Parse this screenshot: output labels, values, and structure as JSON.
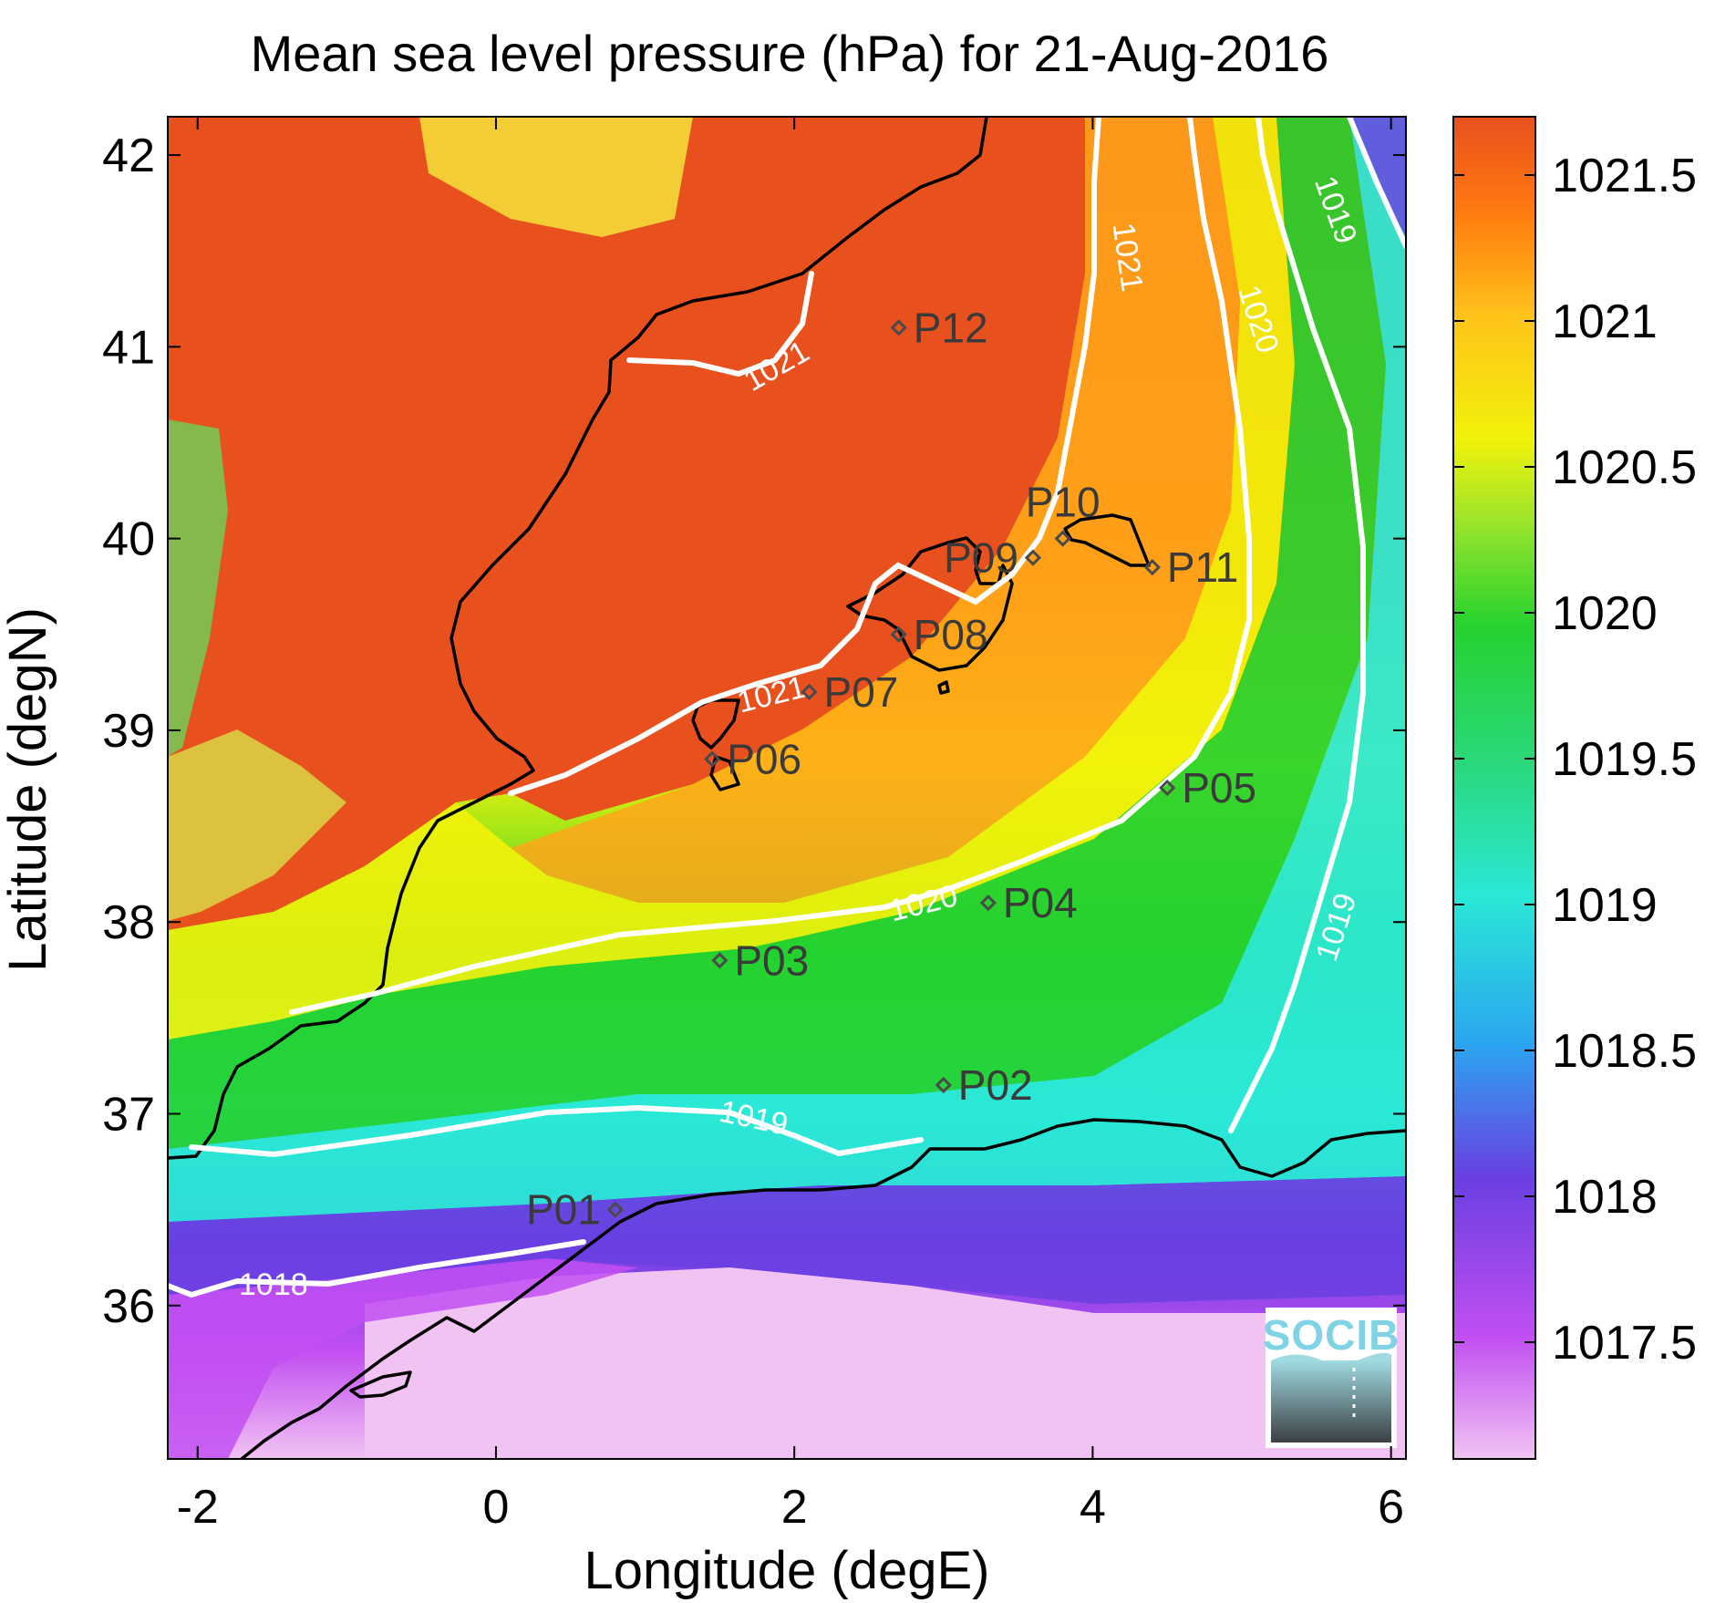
{
  "title": "Mean sea level pressure (hPa) for 21-Aug-2016",
  "xlabel": "Longitude (degE)",
  "ylabel": "Latitude (degN)",
  "x_ticks": [
    "-2",
    "0",
    "2",
    "4",
    "6"
  ],
  "y_ticks": [
    "36",
    "37",
    "38",
    "39",
    "40",
    "41",
    "42"
  ],
  "colorbar": {
    "ticks": [
      "1017.5",
      "1018",
      "1018.5",
      "1019",
      "1019.5",
      "1020",
      "1020.5",
      "1021",
      "1021.5"
    ],
    "range": [
      1017.1,
      1021.7
    ],
    "colors": [
      "#f1c3f3",
      "#c24ff2",
      "#6a3fe2",
      "#2aa6f0",
      "#2ae8d6",
      "#2ad87a",
      "#25d22f",
      "#9ee52a",
      "#f2f20a",
      "#ffc41a",
      "#ff7a10",
      "#e8501e"
    ]
  },
  "map": {
    "lon_range": [
      -2.2,
      6.1
    ],
    "lat_range": [
      35.2,
      42.2
    ]
  },
  "stations": [
    {
      "id": "P01",
      "lon": 0.8,
      "lat": 36.5,
      "label_side": "left"
    },
    {
      "id": "P02",
      "lon": 3.0,
      "lat": 37.15,
      "label_side": "right"
    },
    {
      "id": "P03",
      "lon": 1.5,
      "lat": 37.8,
      "label_side": "right"
    },
    {
      "id": "P04",
      "lon": 3.3,
      "lat": 38.1,
      "label_side": "right"
    },
    {
      "id": "P05",
      "lon": 4.5,
      "lat": 38.7,
      "label_side": "right"
    },
    {
      "id": "P06",
      "lon": 1.45,
      "lat": 38.85,
      "label_side": "right"
    },
    {
      "id": "P07",
      "lon": 2.1,
      "lat": 39.2,
      "label_side": "right"
    },
    {
      "id": "P08",
      "lon": 2.7,
      "lat": 39.5,
      "label_side": "right"
    },
    {
      "id": "P09",
      "lon": 3.6,
      "lat": 39.9,
      "label_side": "left"
    },
    {
      "id": "P10",
      "lon": 3.8,
      "lat": 40.0,
      "label_side": "above"
    },
    {
      "id": "P11",
      "lon": 4.4,
      "lat": 39.85,
      "label_side": "right"
    },
    {
      "id": "P12",
      "lon": 2.7,
      "lat": 41.1,
      "label_side": "right"
    }
  ],
  "contours": [
    {
      "value": "1018",
      "label": "1018"
    },
    {
      "value": "1019",
      "label": "1019"
    },
    {
      "value": "1020",
      "label": "1020"
    },
    {
      "value": "1021",
      "label": "1021"
    }
  ],
  "logo": {
    "text": "SOCIB"
  },
  "colors": {
    "high": "#e8501e",
    "mid": "#25d22f",
    "low": "#f1c3f3",
    "contour": "#ffffff",
    "coast": "#000000"
  }
}
